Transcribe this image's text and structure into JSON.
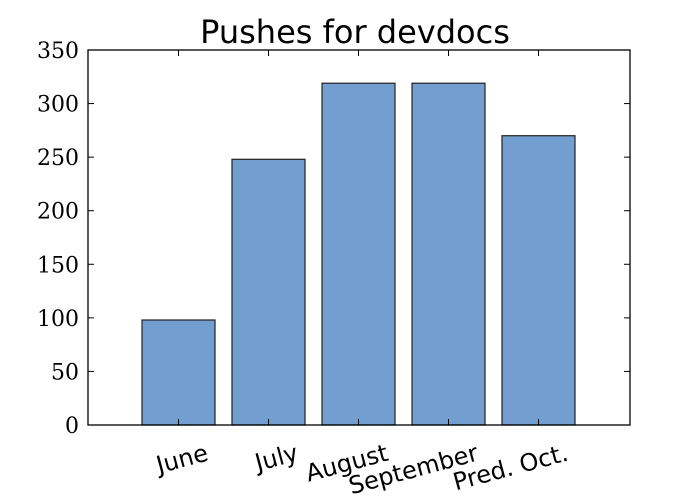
{
  "chart_data": {
    "type": "bar",
    "title": "Pushes for devdocs",
    "xlabel": "",
    "ylabel": "",
    "categories": [
      "June",
      "July",
      "August",
      "September",
      "Pred. Oct."
    ],
    "values": [
      98,
      248,
      319,
      319,
      270
    ],
    "ylim": [
      0,
      350
    ],
    "yticks": [
      "0",
      "50",
      "100",
      "150",
      "200",
      "250",
      "300",
      "350"
    ],
    "grid": false,
    "bar_color": "#729fcf",
    "edge_color": "#222222"
  }
}
